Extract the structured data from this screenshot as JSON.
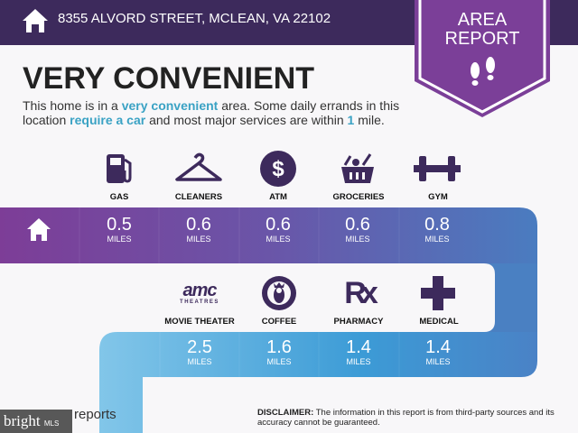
{
  "header": {
    "address": "8355 ALVORD STREET, MCLEAN, VA 22102",
    "home_icon": "house-icon"
  },
  "badge": {
    "line1": "AREA",
    "line2": "REPORT",
    "icon": "footprints-icon",
    "color": "#7b3f98"
  },
  "headline": "VERY CONVENIENT",
  "description": {
    "p1": "This home is in a ",
    "h1": "very convenient",
    "p2": " area. Some daily errands in this location ",
    "h2": "require a car",
    "p3": " and most major services are within ",
    "h3": "1",
    "p4": " mile."
  },
  "row1": [
    {
      "label": "GAS",
      "value": "0.5",
      "unit": "MILES",
      "icon": "gas-pump-icon"
    },
    {
      "label": "CLEANERS",
      "value": "0.6",
      "unit": "MILES",
      "icon": "hanger-icon"
    },
    {
      "label": "ATM",
      "value": "0.6",
      "unit": "MILES",
      "icon": "dollar-icon"
    },
    {
      "label": "GROCERIES",
      "value": "0.6",
      "unit": "MILES",
      "icon": "grocery-basket-icon"
    },
    {
      "label": "GYM",
      "value": "0.8",
      "unit": "MILES",
      "icon": "dumbbell-icon"
    }
  ],
  "row2": [
    {
      "label": "MOVIE THEATER",
      "value": "2.5",
      "unit": "MILES",
      "icon": "amc-theatres-logo",
      "logo_text": "amc",
      "logo_sub": "THEATRES"
    },
    {
      "label": "COFFEE",
      "value": "1.6",
      "unit": "MILES",
      "icon": "starbucks-logo"
    },
    {
      "label": "PHARMACY",
      "value": "1.4",
      "unit": "MILES",
      "icon": "rx-icon",
      "logo_text": "Rx"
    },
    {
      "label": "MEDICAL",
      "value": "1.4",
      "unit": "MILES",
      "icon": "medical-cross-icon"
    }
  ],
  "footer": {
    "reports": "reports",
    "watermark": "bright",
    "watermark_sub": "MLS",
    "disclaimer_bold": "DISCLAIMER:",
    "disclaimer": " The information in this report is from third-party sources and its accuracy cannot be guaranteed."
  },
  "colors": {
    "header": "#3d2a5c",
    "icon": "#3d2a5c",
    "accent": "#3aa2c4"
  }
}
